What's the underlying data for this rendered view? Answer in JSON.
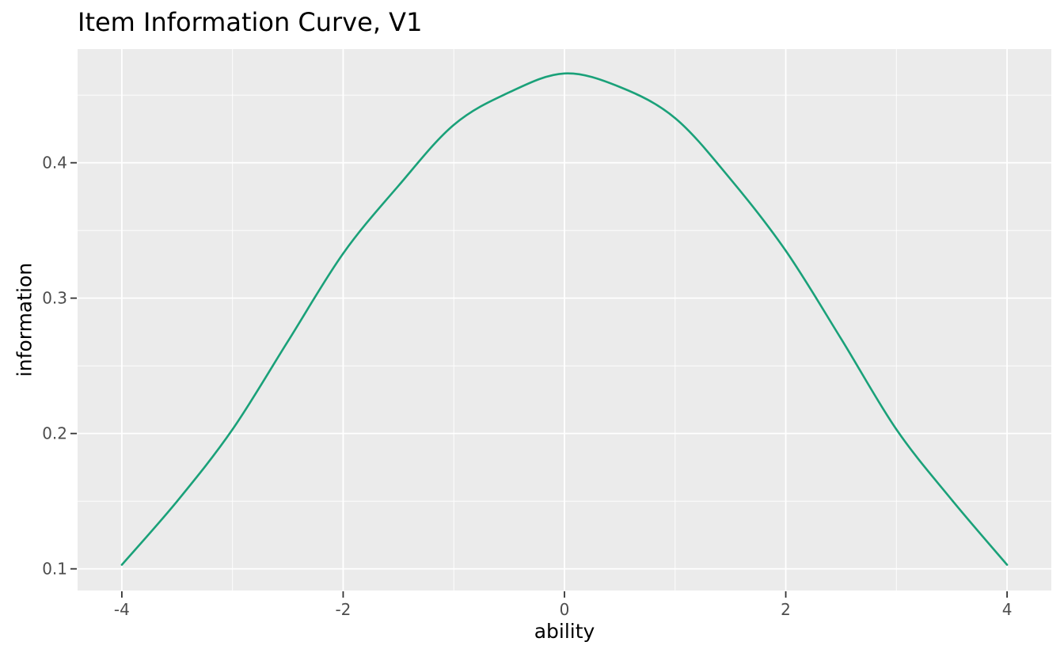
{
  "chart_data": {
    "type": "line",
    "title": "Item Information Curve, V1",
    "xlabel": "ability",
    "ylabel": "information",
    "xlim": [
      -4.4,
      4.4
    ],
    "ylim": [
      0.084,
      0.484
    ],
    "grid": true,
    "legend_position": "none",
    "x_major_ticks": [
      -4,
      -2,
      0,
      2,
      4
    ],
    "x_tick_labels": [
      "-4",
      "-2",
      "0",
      "2",
      "4"
    ],
    "x_minor_ticks": [
      -3,
      -1,
      1,
      3
    ],
    "y_major_ticks": [
      0.1,
      0.2,
      0.3,
      0.4
    ],
    "y_tick_labels": [
      "0.1",
      "0.2",
      "0.3",
      "0.4"
    ],
    "y_minor_ticks": [
      0.15,
      0.25,
      0.35,
      0.45
    ],
    "series": [
      {
        "name": "V1",
        "x": [
          -4,
          -3.5,
          -3,
          -2.5,
          -2,
          -1.5,
          -1,
          -0.5,
          0,
          0.5,
          1,
          1.5,
          2,
          2.5,
          3,
          3.5,
          4
        ],
        "y": [
          0.103,
          0.15,
          0.203,
          0.268,
          0.333,
          0.383,
          0.428,
          0.452,
          0.466,
          0.456,
          0.433,
          0.388,
          0.335,
          0.27,
          0.203,
          0.151,
          0.103
        ]
      }
    ]
  },
  "colors": {
    "figure_background": "#FFFFFF",
    "panel_background": "#EBEBEB",
    "gridline": "#FFFFFF",
    "curve": "#1AA179",
    "tick_mark": "#333333",
    "tick_text": "#4D4D4D",
    "title_text": "#000000",
    "axis_title_text": "#000000"
  }
}
